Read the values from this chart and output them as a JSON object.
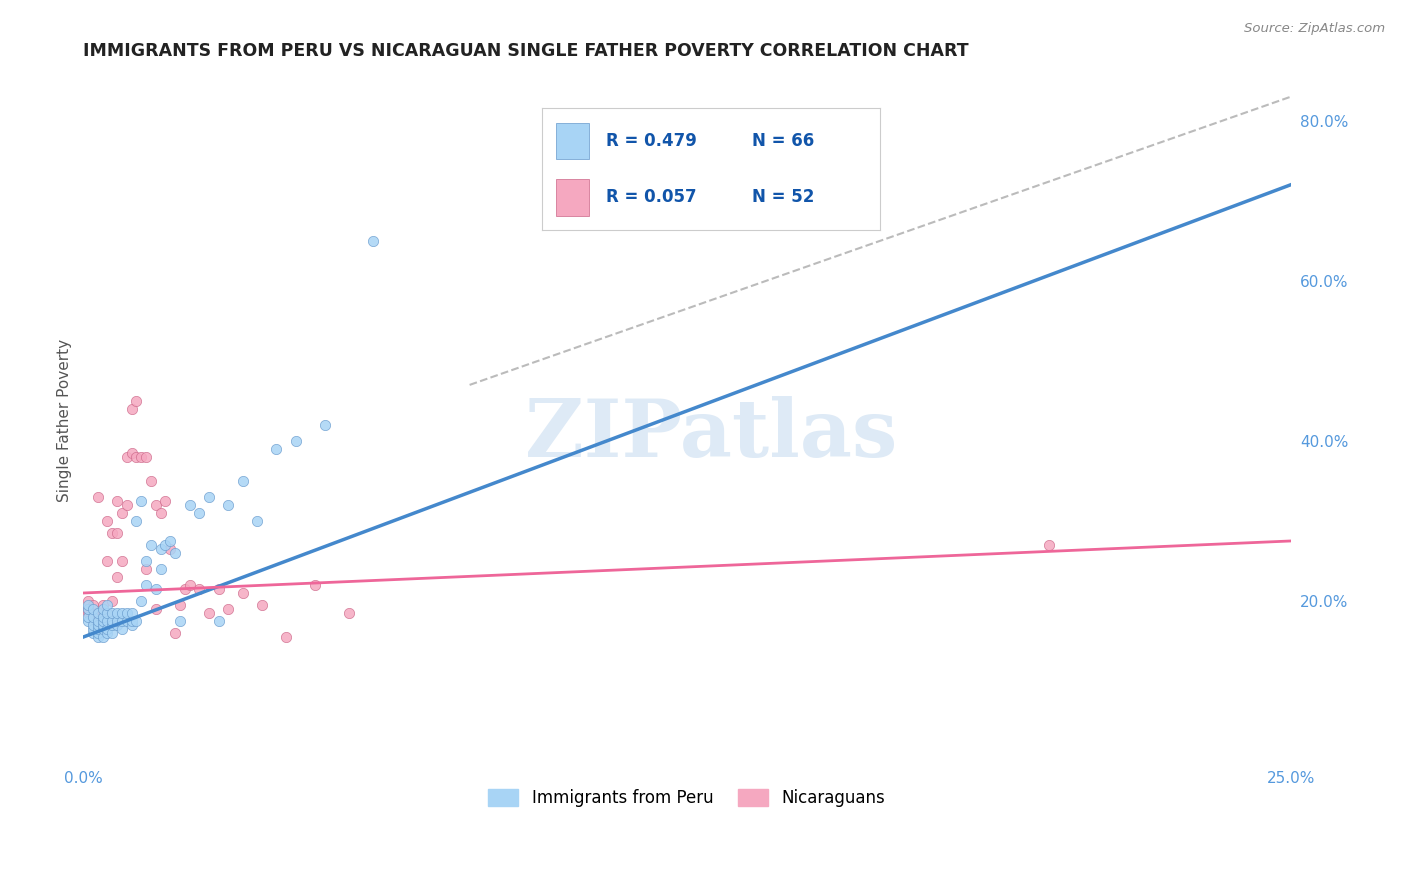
{
  "title": "IMMIGRANTS FROM PERU VS NICARAGUAN SINGLE FATHER POVERTY CORRELATION CHART",
  "source": "Source: ZipAtlas.com",
  "ylabel": "Single Father Poverty",
  "xlim": [
    0.0,
    0.25
  ],
  "ylim": [
    0.0,
    0.85
  ],
  "legend_label1": "Immigrants from Peru",
  "legend_label2": "Nicaraguans",
  "legend_R1": "R = 0.479",
  "legend_N1": "N = 66",
  "legend_R2": "R = 0.057",
  "legend_N2": "N = 52",
  "color_peru": "#A8D4F5",
  "color_nicaragua": "#F5A8C0",
  "color_peru_line": "#4488CC",
  "color_nicaragua_line": "#EE6699",
  "color_peru_edge": "#6699CC",
  "color_nicaragua_edge": "#CC6688",
  "watermark_text": "ZIPatlas",
  "peru_x": [
    0.001,
    0.001,
    0.001,
    0.001,
    0.002,
    0.002,
    0.002,
    0.002,
    0.002,
    0.003,
    0.003,
    0.003,
    0.003,
    0.003,
    0.003,
    0.004,
    0.004,
    0.004,
    0.004,
    0.004,
    0.004,
    0.005,
    0.005,
    0.005,
    0.005,
    0.005,
    0.006,
    0.006,
    0.006,
    0.006,
    0.007,
    0.007,
    0.007,
    0.008,
    0.008,
    0.008,
    0.009,
    0.009,
    0.01,
    0.01,
    0.01,
    0.011,
    0.011,
    0.012,
    0.012,
    0.013,
    0.013,
    0.014,
    0.015,
    0.016,
    0.016,
    0.017,
    0.018,
    0.019,
    0.02,
    0.022,
    0.024,
    0.026,
    0.028,
    0.03,
    0.033,
    0.036,
    0.04,
    0.044,
    0.05,
    0.06
  ],
  "peru_y": [
    0.175,
    0.18,
    0.19,
    0.195,
    0.16,
    0.165,
    0.17,
    0.18,
    0.19,
    0.155,
    0.16,
    0.165,
    0.17,
    0.175,
    0.185,
    0.155,
    0.165,
    0.17,
    0.175,
    0.18,
    0.19,
    0.16,
    0.165,
    0.175,
    0.185,
    0.195,
    0.16,
    0.17,
    0.175,
    0.185,
    0.17,
    0.175,
    0.185,
    0.165,
    0.175,
    0.185,
    0.175,
    0.185,
    0.17,
    0.175,
    0.185,
    0.175,
    0.3,
    0.2,
    0.325,
    0.22,
    0.25,
    0.27,
    0.215,
    0.24,
    0.265,
    0.27,
    0.275,
    0.26,
    0.175,
    0.32,
    0.31,
    0.33,
    0.175,
    0.32,
    0.35,
    0.3,
    0.39,
    0.4,
    0.42,
    0.65
  ],
  "nicaragua_x": [
    0.001,
    0.001,
    0.001,
    0.002,
    0.002,
    0.002,
    0.003,
    0.003,
    0.003,
    0.003,
    0.004,
    0.004,
    0.004,
    0.005,
    0.005,
    0.005,
    0.006,
    0.006,
    0.007,
    0.007,
    0.007,
    0.008,
    0.008,
    0.009,
    0.009,
    0.01,
    0.01,
    0.011,
    0.011,
    0.012,
    0.013,
    0.013,
    0.014,
    0.015,
    0.015,
    0.016,
    0.017,
    0.018,
    0.019,
    0.02,
    0.021,
    0.022,
    0.024,
    0.026,
    0.028,
    0.03,
    0.033,
    0.037,
    0.042,
    0.048,
    0.055,
    0.2
  ],
  "nicaragua_y": [
    0.185,
    0.19,
    0.2,
    0.175,
    0.18,
    0.195,
    0.17,
    0.175,
    0.185,
    0.33,
    0.175,
    0.185,
    0.195,
    0.185,
    0.25,
    0.3,
    0.2,
    0.285,
    0.23,
    0.285,
    0.325,
    0.25,
    0.31,
    0.32,
    0.38,
    0.385,
    0.44,
    0.38,
    0.45,
    0.38,
    0.24,
    0.38,
    0.35,
    0.19,
    0.32,
    0.31,
    0.325,
    0.265,
    0.16,
    0.195,
    0.215,
    0.22,
    0.215,
    0.185,
    0.215,
    0.19,
    0.21,
    0.195,
    0.155,
    0.22,
    0.185,
    0.27
  ],
  "peru_line_x": [
    0.0,
    0.25
  ],
  "peru_line_y": [
    0.155,
    0.72
  ],
  "nicaragua_line_x": [
    0.0,
    0.25
  ],
  "nicaragua_line_y": [
    0.21,
    0.275
  ],
  "dashed_line_x": [
    0.08,
    0.25
  ],
  "dashed_line_y": [
    0.47,
    0.83
  ]
}
